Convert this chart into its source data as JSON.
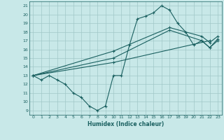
{
  "xlabel": "Humidex (Indice chaleur)",
  "xlim": [
    -0.5,
    23.5
  ],
  "ylim": [
    8.5,
    21.5
  ],
  "yticks": [
    9,
    10,
    11,
    12,
    13,
    14,
    15,
    16,
    17,
    18,
    19,
    20,
    21
  ],
  "xticks": [
    0,
    1,
    2,
    3,
    4,
    5,
    6,
    7,
    8,
    9,
    10,
    11,
    12,
    13,
    14,
    15,
    16,
    17,
    18,
    19,
    20,
    21,
    22,
    23
  ],
  "bg_color": "#c8e8e8",
  "grid_color": "#a0c8c8",
  "line_color": "#1a6060",
  "curve1_x": [
    0,
    1,
    2,
    3,
    4,
    5,
    6,
    7,
    8,
    9,
    10,
    11,
    12,
    13,
    14,
    15,
    16,
    17,
    18,
    19,
    20,
    21,
    22,
    23
  ],
  "curve1_y": [
    13.0,
    12.5,
    13.0,
    12.5,
    12.0,
    11.0,
    10.5,
    9.5,
    9.0,
    9.5,
    13.0,
    13.0,
    16.5,
    19.5,
    19.8,
    20.2,
    21.0,
    20.5,
    19.0,
    18.0,
    16.5,
    17.0,
    16.2,
    17.0
  ],
  "curve2_x": [
    0,
    10,
    22
  ],
  "curve2_y": [
    13.0,
    14.5,
    17.0
  ],
  "curve3_x": [
    0,
    10,
    17,
    21,
    22,
    23
  ],
  "curve3_y": [
    13.0,
    15.0,
    18.2,
    17.0,
    16.2,
    17.2
  ],
  "curve4_x": [
    0,
    10,
    17,
    21,
    22,
    23
  ],
  "curve4_y": [
    13.0,
    15.8,
    18.5,
    17.5,
    16.8,
    17.5
  ]
}
